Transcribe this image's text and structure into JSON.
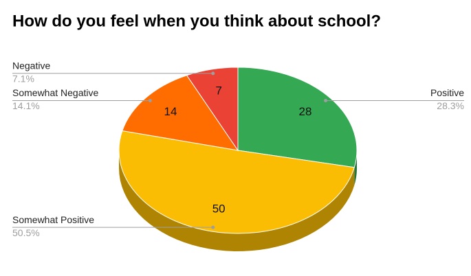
{
  "chart_data": {
    "type": "pie3d",
    "title": "How do you feel when you think about school?",
    "categories": [
      "Positive",
      "Somewhat Positive",
      "Somewhat Negative",
      "Negative"
    ],
    "values": [
      28,
      50,
      14,
      7
    ],
    "percent_labels": [
      "28.3%",
      "50.5%",
      "14.1%",
      "7.1%"
    ],
    "colors": [
      "#34a853",
      "#fbbc04",
      "#ff6d01",
      "#ea4335"
    ]
  }
}
